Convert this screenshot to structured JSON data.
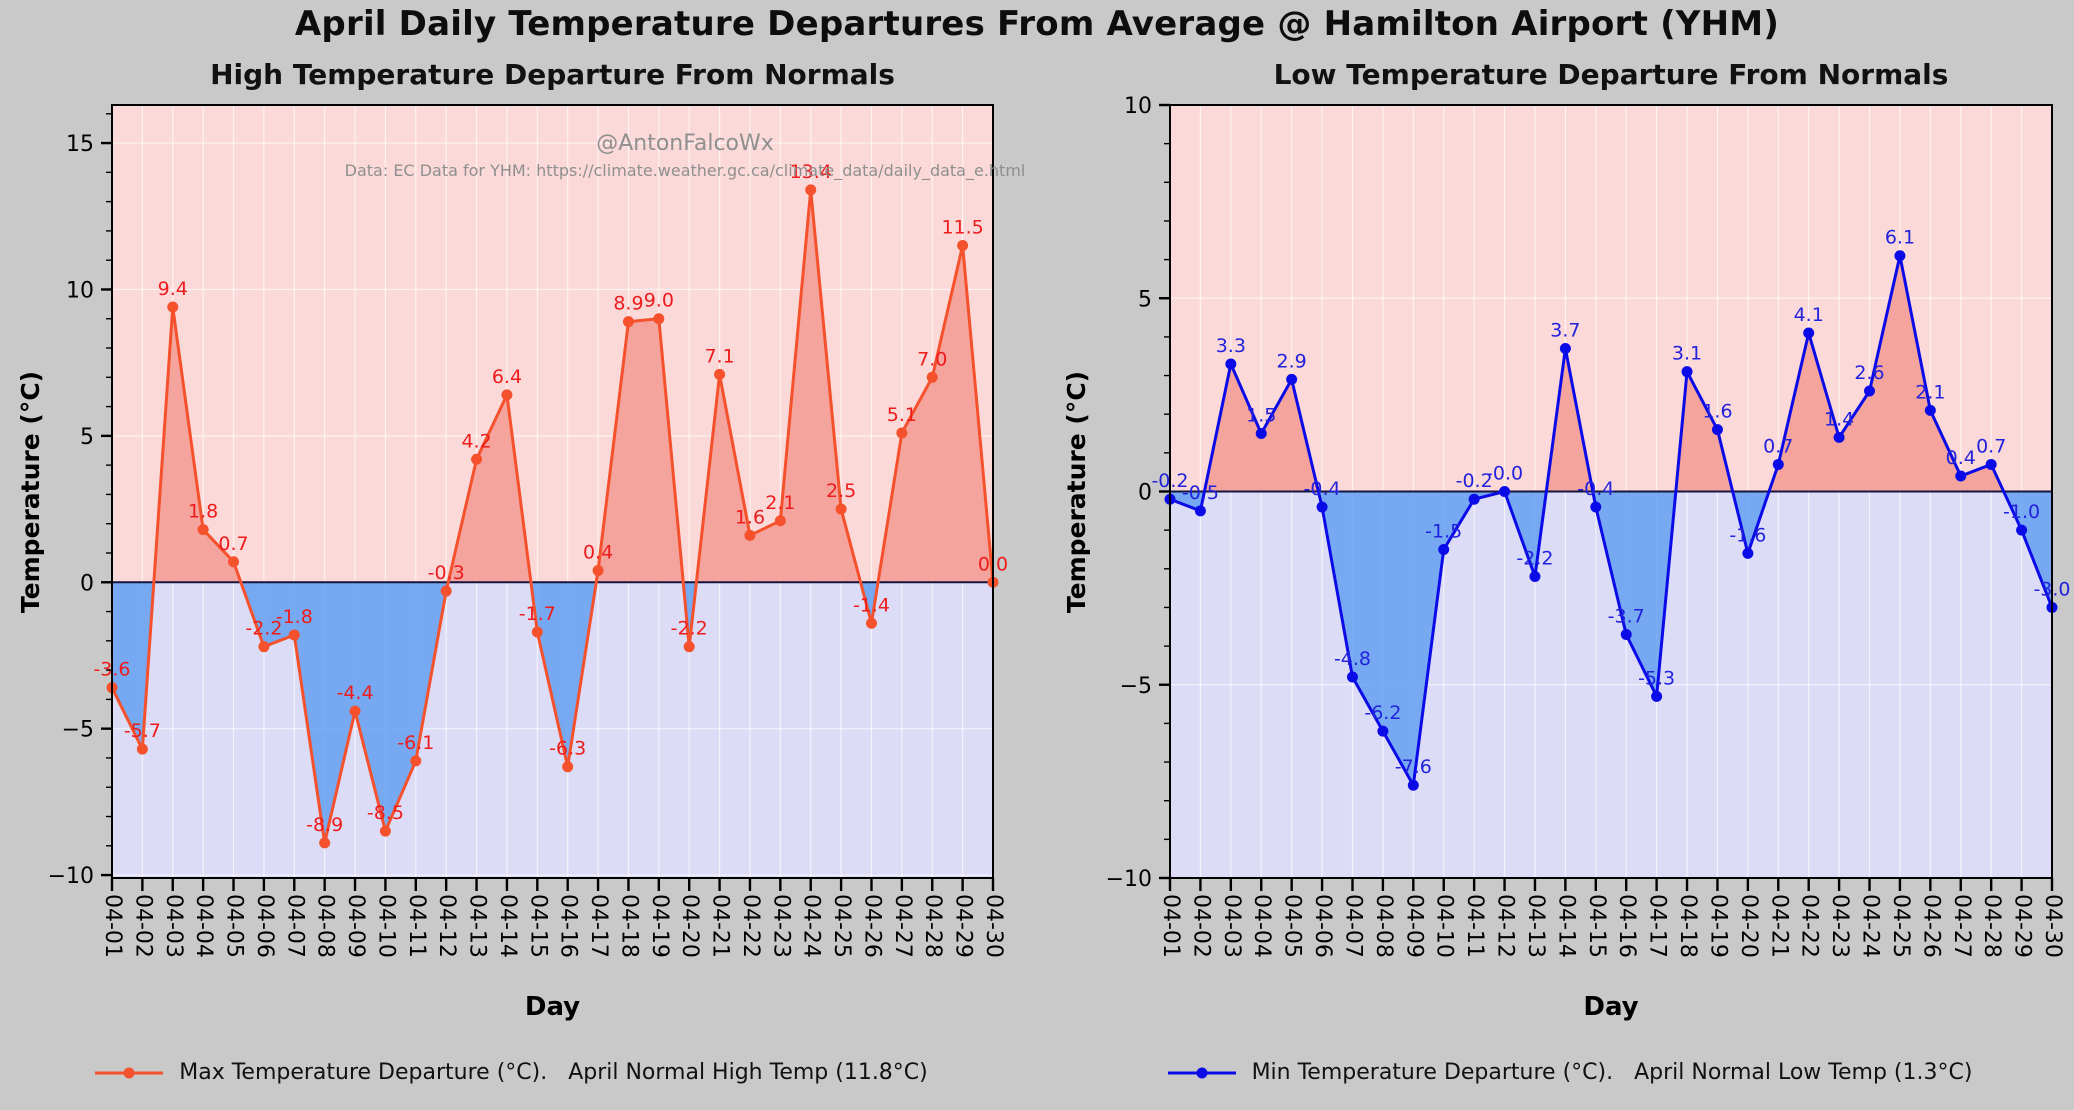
{
  "page": {
    "title": "April Daily Temperature Departures From Average @ Hamilton Airport (YHM)",
    "background": "#c9c9c9"
  },
  "watermark": {
    "line1": "@AntonFalcoWx",
    "line2": "Data: EC Data for YHM: https://climate.weather.gc.ca/climate_data/daily_data_e.html"
  },
  "chart_data": [
    {
      "type": "line",
      "title": "High Temperature Departure From Normals",
      "xlabel": "Day",
      "ylabel": "Temperature (°C)",
      "ylim": [
        -10.1,
        16.3
      ],
      "yticks": [
        15,
        10,
        5,
        0,
        -5,
        -10
      ],
      "ytick_labels": [
        "15",
        "10",
        "5",
        "0",
        "−5",
        "−10"
      ],
      "grid": true,
      "legend_position": "bottom",
      "legend_label": "Max Temperature Departure (°C).   April Normal High Temp (11.8°C)",
      "categories": [
        "04-01",
        "04-02",
        "04-03",
        "04-04",
        "04-05",
        "04-06",
        "04-07",
        "04-08",
        "04-09",
        "04-10",
        "04-11",
        "04-12",
        "04-13",
        "04-14",
        "04-15",
        "04-16",
        "04-17",
        "04-18",
        "04-19",
        "04-20",
        "04-21",
        "04-22",
        "04-23",
        "04-24",
        "04-25",
        "04-26",
        "04-27",
        "04-28",
        "04-29",
        "04-30"
      ],
      "values": [
        -3.6,
        -5.7,
        9.4,
        1.8,
        0.7,
        -2.2,
        -1.8,
        -8.9,
        -4.4,
        -8.5,
        -6.1,
        -0.3,
        4.2,
        6.4,
        -1.7,
        -6.3,
        0.4,
        8.9,
        9.0,
        -2.2,
        7.1,
        1.6,
        2.1,
        13.4,
        2.5,
        -1.4,
        5.1,
        7.0,
        11.5,
        0.0
      ],
      "point_labels": [
        "-3.6",
        "-5.7",
        "9.4",
        "1.8",
        "0.7",
        "-2.2",
        "-1.8",
        "-8.9",
        "-4.4",
        "-8.5",
        "-6.1",
        "-0.3",
        "4.2",
        "6.4",
        "-1.7",
        "-6.3",
        "0.4",
        "8.9",
        "9.0",
        "-2.2",
        "7.1",
        "1.6",
        "2.1",
        "13.4",
        "2.5",
        "-1.4",
        "5.1",
        "7.0",
        "11.5",
        "0.0"
      ],
      "line_color": "#f4512c",
      "label_color": "#ee1c1c",
      "fill_positive": "#f29a90",
      "fill_negative": "#64a0f0",
      "bg_above_zero": "#fbd9d9",
      "bg_below_zero": "#dcdcf7"
    },
    {
      "type": "line",
      "title": "Low Temperature Departure From Normals",
      "xlabel": "Day",
      "ylabel": "Temperature (°C)",
      "ylim": [
        -10,
        10
      ],
      "yticks": [
        10,
        5,
        0,
        -5,
        -10
      ],
      "ytick_labels": [
        "10",
        "5",
        "0",
        "−5",
        "−10"
      ],
      "grid": true,
      "legend_position": "bottom",
      "legend_label": "Min Temperature Departure (°C).   April Normal Low Temp (1.3°C)",
      "categories": [
        "04-01",
        "04-02",
        "04-03",
        "04-04",
        "04-05",
        "04-06",
        "04-07",
        "04-08",
        "04-09",
        "04-10",
        "04-11",
        "04-12",
        "04-13",
        "04-14",
        "04-15",
        "04-16",
        "04-17",
        "04-18",
        "04-19",
        "04-20",
        "04-21",
        "04-22",
        "04-23",
        "04-24",
        "04-25",
        "04-26",
        "04-27",
        "04-28",
        "04-29",
        "04-30"
      ],
      "values": [
        -0.2,
        -0.5,
        3.3,
        1.5,
        2.9,
        -0.4,
        -4.8,
        -6.2,
        -7.6,
        -1.5,
        -0.2,
        -0.0,
        -2.2,
        3.7,
        -0.4,
        -3.7,
        -5.3,
        3.1,
        1.6,
        -1.6,
        0.7,
        4.1,
        1.4,
        2.6,
        6.1,
        2.1,
        0.4,
        0.7,
        -1.0,
        -3.0
      ],
      "point_labels": [
        "-0.2",
        "-0.5",
        "3.3",
        "1.5",
        "2.9",
        "-0.4",
        "-4.8",
        "-6.2",
        "-7.6",
        "-1.5",
        "-0.2",
        "-0.0",
        "-2.2",
        "3.7",
        "-0.4",
        "-3.7",
        "-5.3",
        "3.1",
        "1.6",
        "-1.6",
        "0.7",
        "4.1",
        "1.4",
        "2.6",
        "6.1",
        "2.1",
        "0.4",
        "0.7",
        "-1.0",
        "-3.0"
      ],
      "line_color": "#0b0be8",
      "label_color": "#2222dd",
      "fill_positive": "#f29a90",
      "fill_negative": "#64a0f0",
      "bg_above_zero": "#fbd9d9",
      "bg_below_zero": "#dcdcf7"
    }
  ]
}
